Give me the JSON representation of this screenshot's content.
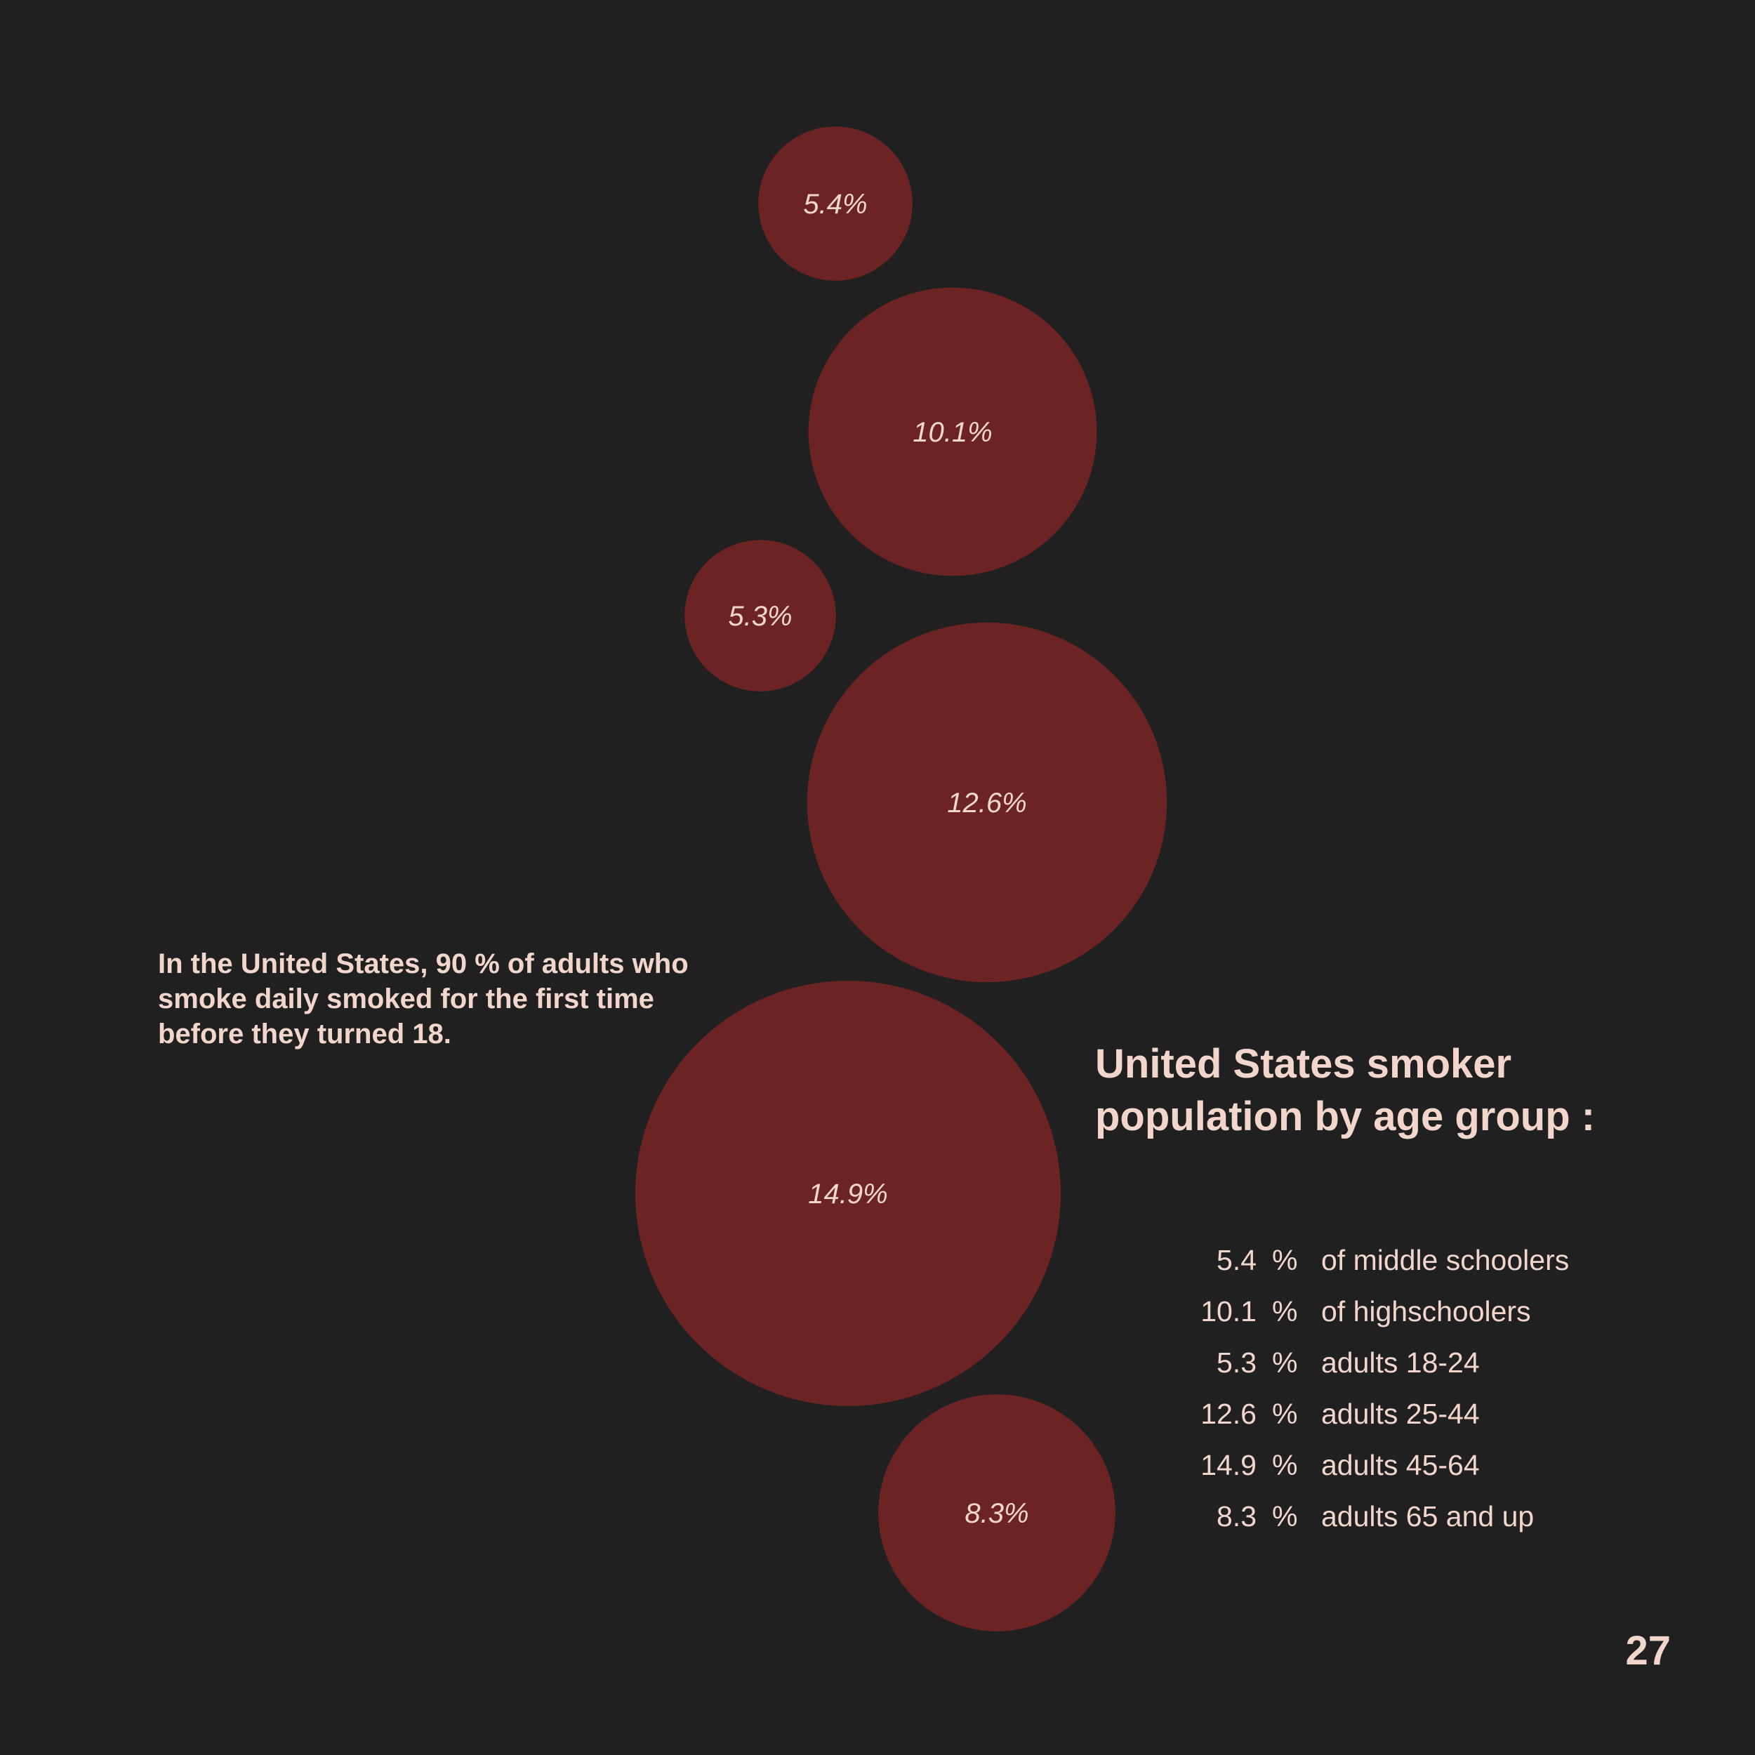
{
  "intro_text": "In the United States, 90 % of adults who smoke daily smoked for the first time before they turned 18.",
  "page_number": "27",
  "colors": {
    "background": "#202020",
    "bubble": "#6b2323",
    "text": "#f2d6cc"
  },
  "chart_data": {
    "type": "bubble",
    "title": "United States smoker population by age group :",
    "unit": "%",
    "series": [
      {
        "label": "of middle schoolers",
        "value": 5.4,
        "value_text": "5.4",
        "bubble_label": "5.4%"
      },
      {
        "label": "of highschoolers",
        "value": 10.1,
        "value_text": "10.1",
        "bubble_label": "10.1%"
      },
      {
        "label": "adults 18-24",
        "value": 5.3,
        "value_text": "5.3",
        "bubble_label": "5.3%"
      },
      {
        "label": "adults 25-44",
        "value": 12.6,
        "value_text": "12.6",
        "bubble_label": "12.6%"
      },
      {
        "label": "adults 45-64",
        "value": 14.9,
        "value_text": "14.9",
        "bubble_label": "14.9%"
      },
      {
        "label": "adults 65 and up",
        "value": 8.3,
        "value_text": "8.3",
        "bubble_label": "8.3%"
      }
    ]
  }
}
